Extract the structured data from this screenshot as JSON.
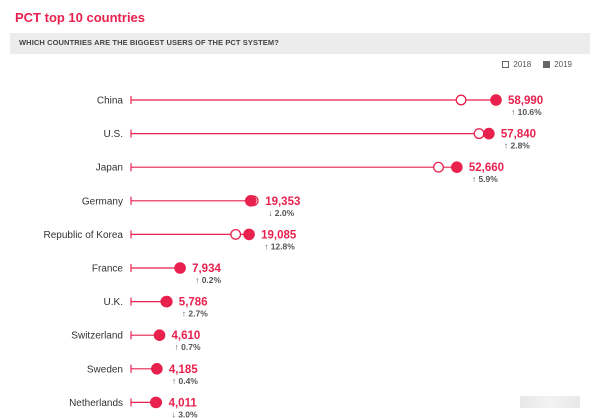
{
  "title": "PCT top 10 countries",
  "subtitle": "WHICH COUNTRIES ARE THE BIGGEST USERS OF THE PCT SYSTEM?",
  "legend": {
    "open_label": "2018",
    "filled_label": "2019"
  },
  "colors": {
    "accent": "#e8214e",
    "line": "#e8214e",
    "text": "#333333",
    "change": "#555555"
  },
  "chart_data": {
    "type": "dot",
    "series": [
      {
        "name": "2018",
        "marker": "open"
      },
      {
        "name": "2019",
        "marker": "filled"
      }
    ],
    "rows": [
      {
        "country": "China",
        "v2018": 53345,
        "v2019": 58990,
        "value_label": "58,990",
        "change_label": "10.6%",
        "direction": "up"
      },
      {
        "country": "U.S.",
        "v2018": 56252,
        "v2019": 57840,
        "value_label": "57,840",
        "change_label": "2.8%",
        "direction": "up"
      },
      {
        "country": "Japan",
        "v2018": 49702,
        "v2019": 52660,
        "value_label": "52,660",
        "change_label": "5.9%",
        "direction": "up"
      },
      {
        "country": "Germany",
        "v2018": 19750,
        "v2019": 19353,
        "value_label": "19,353",
        "change_label": "2.0%",
        "direction": "down"
      },
      {
        "country": "Republic of Korea",
        "v2018": 16919,
        "v2019": 19085,
        "value_label": "19,085",
        "change_label": "12.8%",
        "direction": "up"
      },
      {
        "country": "France",
        "v2018": 7918,
        "v2019": 7934,
        "value_label": "7,934",
        "change_label": "0.2%",
        "direction": "up"
      },
      {
        "country": "U.K.",
        "v2018": 5634,
        "v2019": 5786,
        "value_label": "5,786",
        "change_label": "2.7%",
        "direction": "up"
      },
      {
        "country": "Switzerland",
        "v2018": 4578,
        "v2019": 4610,
        "value_label": "4,610",
        "change_label": "0.7%",
        "direction": "up"
      },
      {
        "country": "Sweden",
        "v2018": 4167,
        "v2019": 4185,
        "value_label": "4,185",
        "change_label": "0.4%",
        "direction": "up"
      },
      {
        "country": "Netherlands",
        "v2018": 4138,
        "v2019": 4011,
        "value_label": "4,011",
        "change_label": "3.0%",
        "direction": "down"
      }
    ]
  }
}
